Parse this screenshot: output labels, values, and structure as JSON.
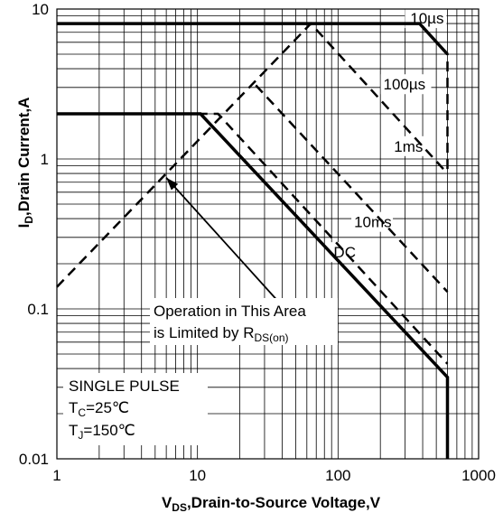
{
  "chart_data": {
    "type": "line",
    "title": "",
    "xscale": "log",
    "yscale": "log",
    "xlim": [
      1,
      1000
    ],
    "ylim": [
      0.01,
      10
    ],
    "grid": true,
    "x_tick_labels": [
      "1",
      "10",
      "100",
      "1000"
    ],
    "y_tick_labels": [
      "10",
      "1",
      "0.1",
      "0.01"
    ],
    "xlabel": {
      "prefix": "V",
      "sub": "DS",
      "suffix": ",Drain-to-Source Voltage,V"
    },
    "ylabel": {
      "prefix": "I",
      "sub": "D",
      "suffix": ",Drain Current,A"
    },
    "series": [
      {
        "name": "10µs",
        "style": "solid",
        "width": 3.5,
        "points": [
          [
            1,
            8
          ],
          [
            380,
            8
          ],
          [
            600,
            5
          ]
        ]
      },
      {
        "name": "100µs",
        "style": "dashed",
        "width": 2.5,
        "points": [
          [
            380,
            8
          ],
          [
            600,
            5
          ],
          [
            600,
            0.8
          ]
        ]
      },
      {
        "name": "",
        "style": "dashed",
        "width": 2.5,
        "points": [
          [
            1,
            0.14
          ],
          [
            64,
            8
          ],
          [
            600,
            0.8
          ]
        ]
      },
      {
        "name": "1ms",
        "style": "dashed",
        "width": 2.5,
        "points": [
          [
            26,
            3.1
          ],
          [
            600,
            0.13
          ]
        ]
      },
      {
        "name": "10ms",
        "style": "dashed",
        "width": 2.5,
        "points": [
          [
            10,
            2
          ],
          [
            14,
            2
          ],
          [
            600,
            0.043
          ]
        ]
      },
      {
        "name": "DC",
        "style": "solid",
        "width": 3.5,
        "points": [
          [
            1,
            2
          ],
          [
            10.5,
            2
          ],
          [
            600,
            0.035
          ],
          [
            600,
            0.01
          ]
        ]
      }
    ],
    "series_labels": [
      {
        "series": 0,
        "text": "10µs",
        "at": [
          600,
          8
        ],
        "anchor": "end"
      },
      {
        "series": 1,
        "text": "100µs",
        "at": [
          210,
          2.9
        ],
        "anchor": "start"
      },
      {
        "series": 3,
        "text": "1ms",
        "at": [
          250,
          1.12
        ],
        "anchor": "start"
      },
      {
        "series": 4,
        "text": "10ms",
        "at": [
          130,
          0.35
        ],
        "anchor": "start"
      },
      {
        "series": 5,
        "text": "DC",
        "at": [
          93,
          0.22
        ],
        "anchor": "start"
      }
    ],
    "annotations": {
      "arrow": {
        "from": [
          40,
          0.105
        ],
        "to": [
          6,
          0.75
        ]
      },
      "note_lines": [
        {
          "text": "Operation in This Area"
        },
        {
          "text": "is Limited by R",
          "sub": "DS(on)"
        }
      ],
      "pulse_lines": [
        {
          "text": "SINGLE PULSE"
        },
        {
          "prefix": "T",
          "sub": "C",
          "suffix": "=25℃"
        },
        {
          "prefix": "T",
          "sub": "J",
          "suffix": "=150℃"
        }
      ]
    }
  }
}
